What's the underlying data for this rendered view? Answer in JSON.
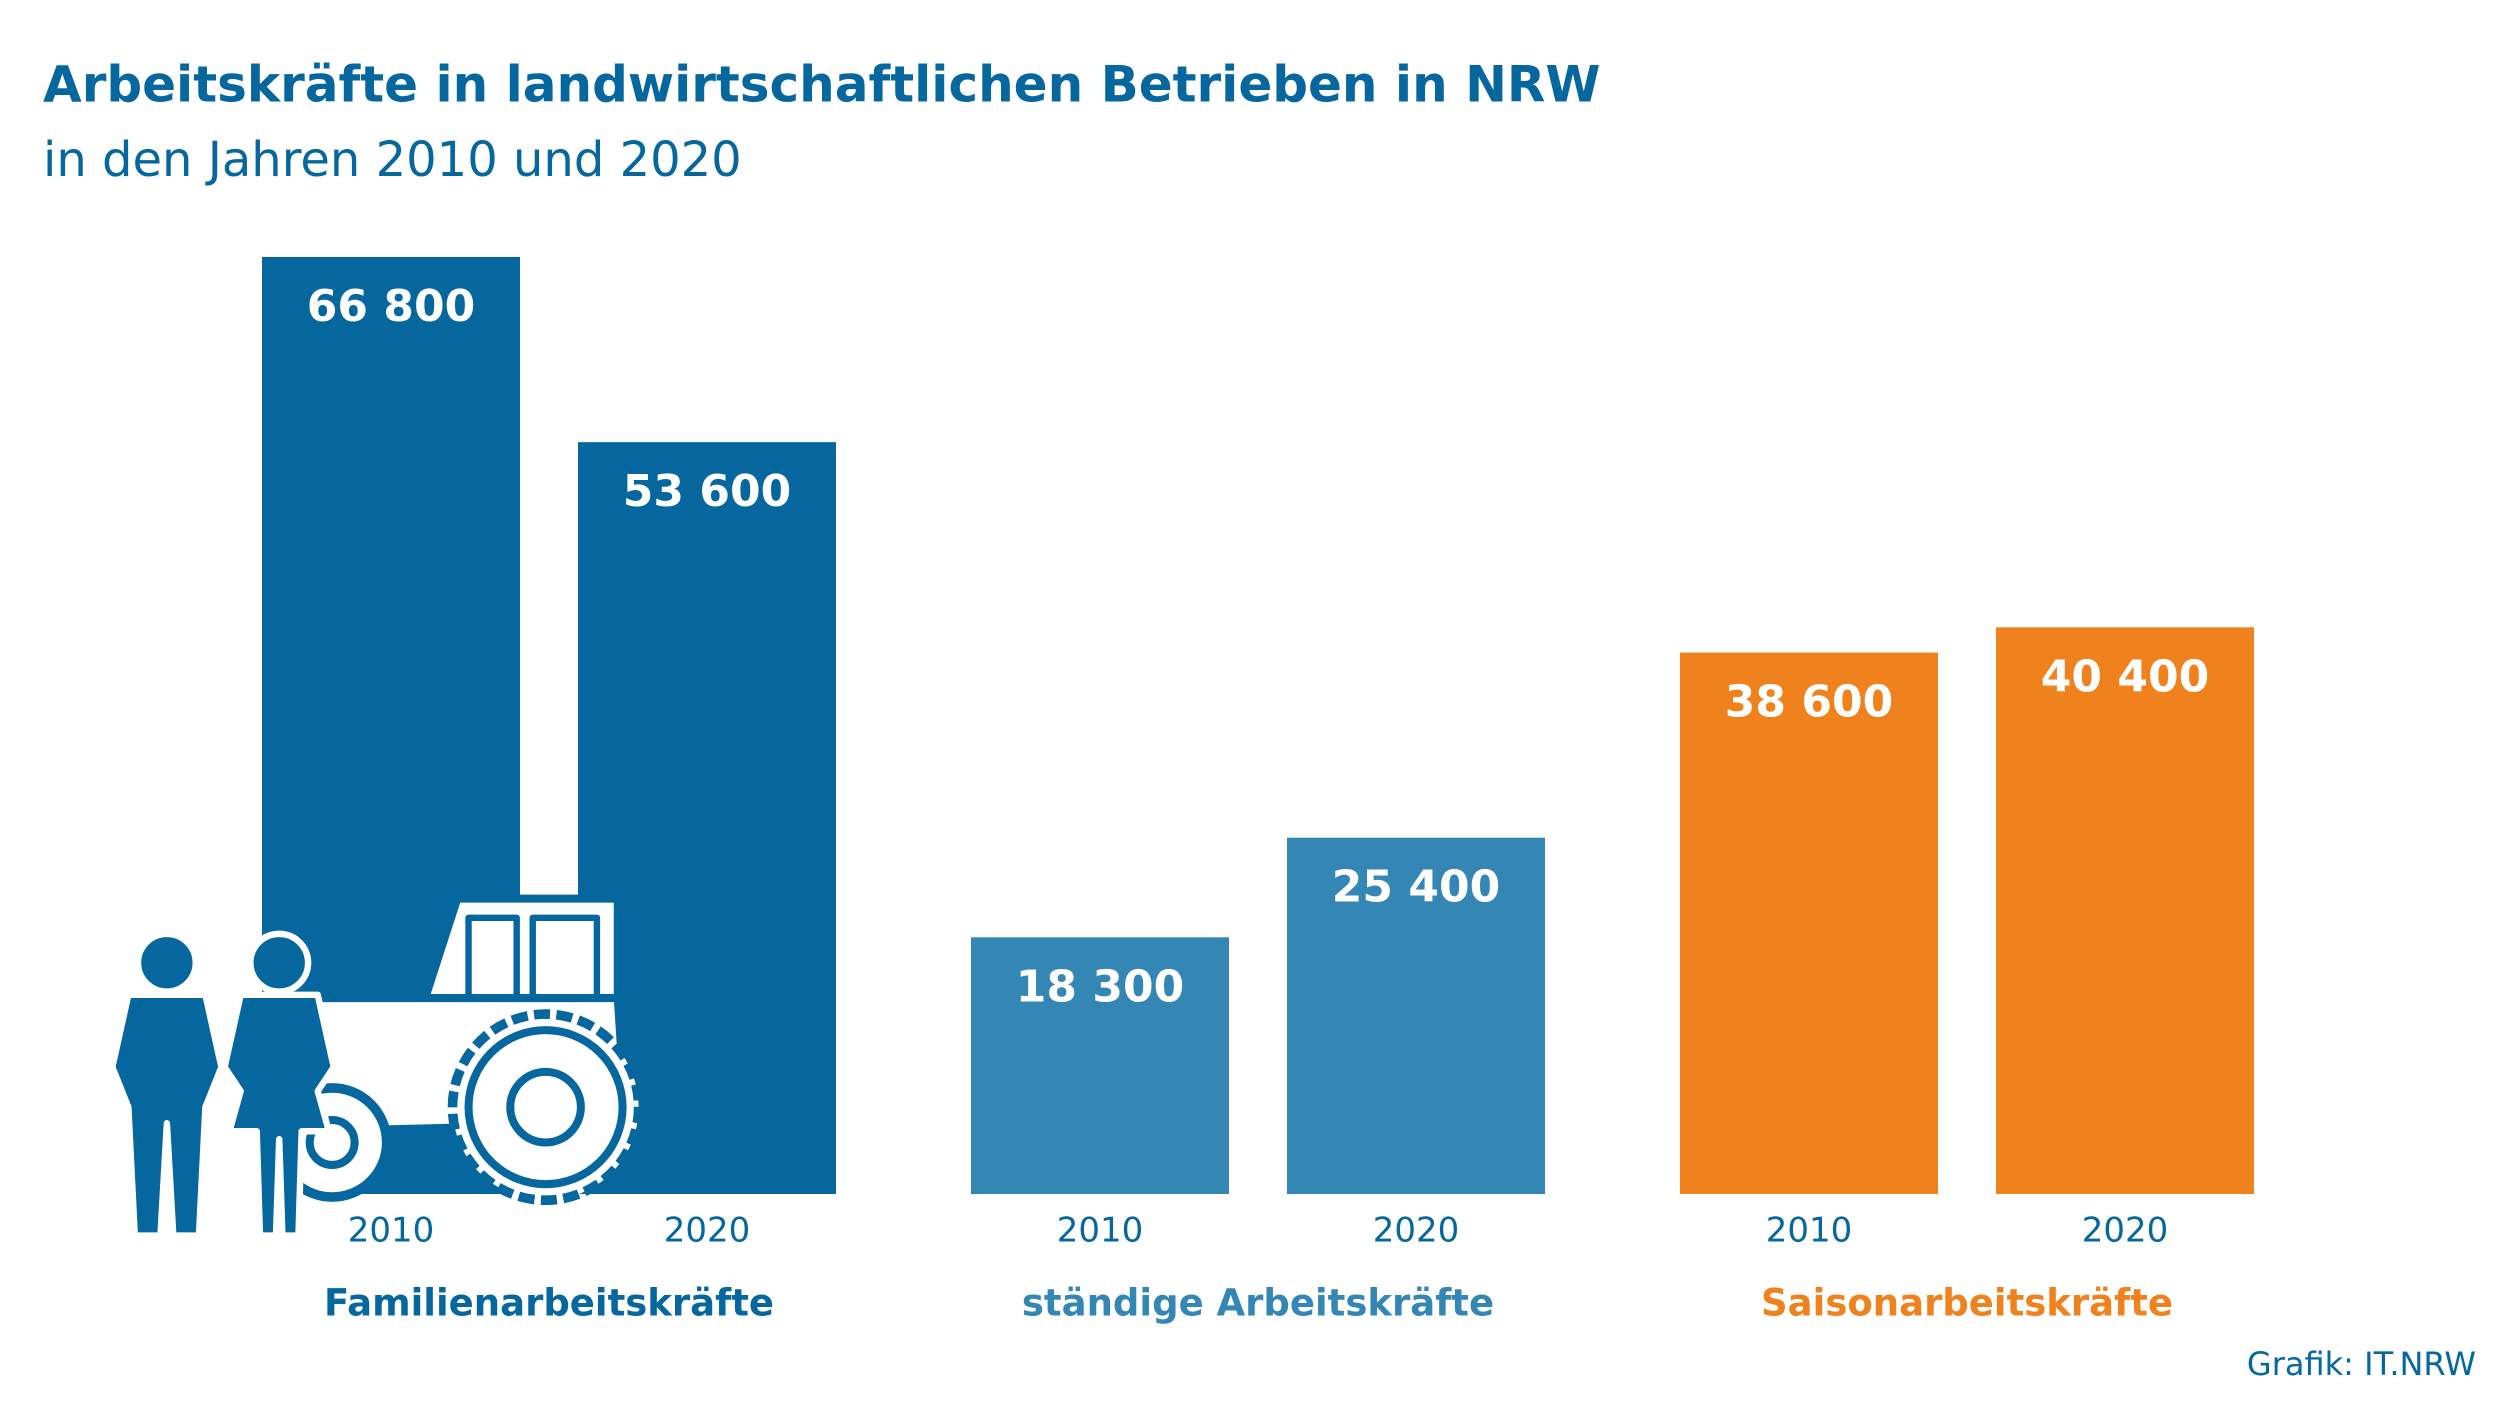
{
  "chart_data": {
    "type": "bar",
    "title": "Arbeitskräfte in landwirtschaftlichen Betrieben in NRW",
    "subtitle": "in den Jahren 2010 und 2020",
    "source": "Grafik: IT.NRW",
    "groups": [
      {
        "name": "Familienarbeitskräfte",
        "color": "#05679e",
        "categories": [
          "2010",
          "2020"
        ],
        "values": [
          66800,
          53600
        ],
        "value_labels": [
          "66 800",
          "53 600"
        ]
      },
      {
        "name": "ständige Arbeitskräfte",
        "color": "#3487b5",
        "categories": [
          "2010",
          "2020"
        ],
        "values": [
          18300,
          25400
        ],
        "value_labels": [
          "18 300",
          "25 400"
        ]
      },
      {
        "name": "Saisonarbeitskräfte",
        "color": "#f0821e",
        "categories": [
          "2010",
          "2020"
        ],
        "values": [
          38600,
          40400
        ],
        "value_labels": [
          "38 600",
          "40 400"
        ]
      }
    ]
  }
}
